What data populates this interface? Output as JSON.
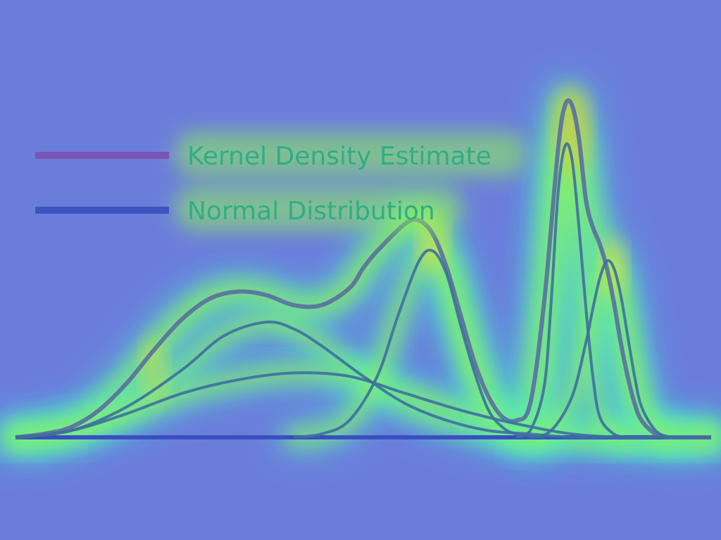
{
  "chart_data": {
    "type": "line",
    "title": "",
    "xlabel": "",
    "ylabel": "",
    "grid": false,
    "legend_placement": "top-left",
    "xlim": [
      0,
      1
    ],
    "ylim": [
      0,
      1
    ],
    "overlay": "attention heatmap",
    "legend": [
      {
        "label": "Kernel Density Estimate",
        "color": "#7a55b5"
      },
      {
        "label": "Normal Distribution",
        "color": "#3a55c0"
      }
    ],
    "series": [
      {
        "name": "Kernel Density Estimate",
        "role": "sum",
        "color": "#5a6fa0",
        "x": [
          0.0,
          0.04,
          0.08,
          0.12,
          0.16,
          0.2,
          0.24,
          0.28,
          0.32,
          0.36,
          0.4,
          0.44,
          0.48,
          0.5,
          0.52,
          0.56,
          0.58,
          0.6,
          0.62,
          0.64,
          0.66,
          0.68,
          0.7,
          0.72,
          0.74,
          0.76,
          0.78,
          0.79,
          0.8,
          0.81,
          0.82,
          0.83,
          0.84,
          0.85,
          0.86,
          0.87,
          0.88,
          0.89,
          0.9,
          0.92,
          0.94,
          0.96,
          1.0
        ],
        "y": [
          0.0,
          0.01,
          0.03,
          0.08,
          0.16,
          0.26,
          0.35,
          0.41,
          0.43,
          0.42,
          0.39,
          0.39,
          0.44,
          0.5,
          0.55,
          0.63,
          0.64,
          0.6,
          0.5,
          0.36,
          0.22,
          0.12,
          0.06,
          0.05,
          0.1,
          0.4,
          0.85,
          0.98,
          0.98,
          0.88,
          0.7,
          0.62,
          0.57,
          0.5,
          0.4,
          0.28,
          0.18,
          0.1,
          0.05,
          0.01,
          0.0,
          0.0,
          0.0
        ]
      },
      {
        "name": "Normal Distribution",
        "role": "component",
        "color": "#3e6fa0",
        "x": [
          0.0,
          0.08,
          0.16,
          0.24,
          0.3,
          0.36,
          0.4,
          0.44,
          0.5,
          0.56,
          0.62,
          0.68,
          0.74,
          0.8,
          0.86,
          1.0
        ],
        "y": [
          0.0,
          0.02,
          0.09,
          0.2,
          0.3,
          0.34,
          0.32,
          0.27,
          0.18,
          0.1,
          0.05,
          0.02,
          0.01,
          0.0,
          0.0,
          0.0
        ]
      },
      {
        "name": "Normal Distribution",
        "role": "component",
        "color": "#3e6fa0",
        "x": [
          0.0,
          0.08,
          0.16,
          0.24,
          0.32,
          0.4,
          0.48,
          0.56,
          0.64,
          0.72,
          0.8,
          0.88,
          1.0
        ],
        "y": [
          0.0,
          0.02,
          0.07,
          0.13,
          0.17,
          0.19,
          0.18,
          0.13,
          0.08,
          0.04,
          0.01,
          0.0,
          0.0
        ]
      },
      {
        "name": "Normal Distribution",
        "role": "component",
        "color": "#3e6fa0",
        "x": [
          0.4,
          0.44,
          0.48,
          0.52,
          0.55,
          0.58,
          0.6,
          0.62,
          0.64,
          0.66,
          0.68,
          0.7,
          0.72,
          0.76
        ],
        "y": [
          0.0,
          0.01,
          0.05,
          0.18,
          0.36,
          0.52,
          0.55,
          0.48,
          0.33,
          0.19,
          0.08,
          0.03,
          0.01,
          0.0
        ]
      },
      {
        "name": "Normal Distribution",
        "role": "component",
        "color": "#3e6fa0",
        "x": [
          0.72,
          0.74,
          0.76,
          0.77,
          0.78,
          0.79,
          0.8,
          0.81,
          0.82,
          0.83,
          0.84,
          0.86,
          0.88
        ],
        "y": [
          0.0,
          0.02,
          0.15,
          0.4,
          0.72,
          0.86,
          0.82,
          0.62,
          0.38,
          0.18,
          0.06,
          0.01,
          0.0
        ]
      },
      {
        "name": "Normal Distribution",
        "role": "component",
        "color": "#3e6fa0",
        "x": [
          0.74,
          0.77,
          0.8,
          0.82,
          0.83,
          0.84,
          0.85,
          0.86,
          0.87,
          0.88,
          0.89,
          0.9,
          0.92,
          0.94
        ],
        "y": [
          0.0,
          0.02,
          0.12,
          0.28,
          0.38,
          0.47,
          0.52,
          0.5,
          0.42,
          0.3,
          0.18,
          0.09,
          0.02,
          0.0
        ]
      }
    ],
    "baseline": {
      "y": 0
    }
  }
}
